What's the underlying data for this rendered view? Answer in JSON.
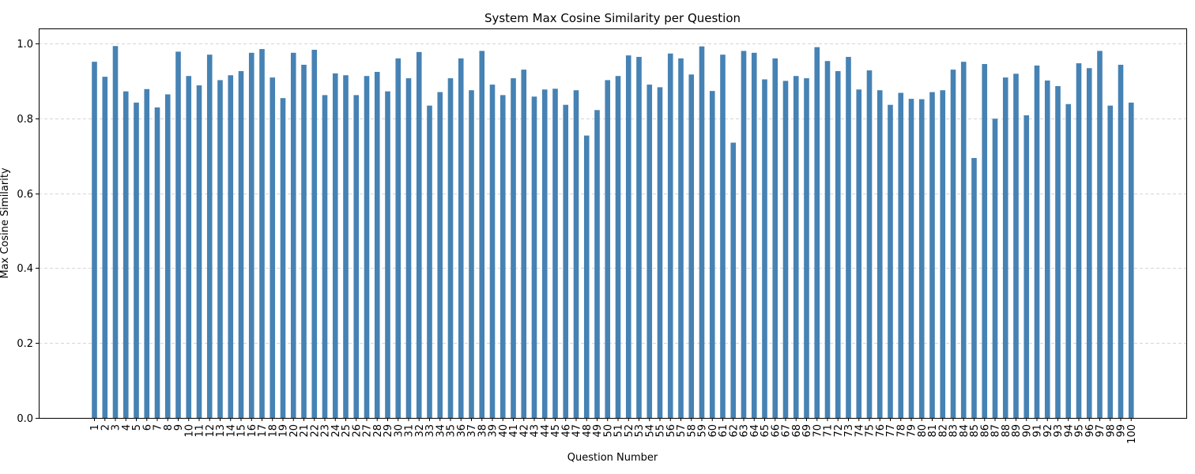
{
  "chart_data": {
    "type": "bar",
    "title": "System Max Cosine Similarity per Question",
    "xlabel": "Question Number",
    "ylabel": "Max Cosine Similarity",
    "ylim": [
      0,
      1.04
    ],
    "yticks": [
      0.0,
      0.2,
      0.4,
      0.6,
      0.8,
      1.0
    ],
    "ytick_labels": [
      "0.0",
      "0.2",
      "0.4",
      "0.6",
      "0.8",
      "1.0"
    ],
    "grid": "horizontal dashed",
    "bar_color": "#4682b4",
    "categories": [
      "1",
      "2",
      "3",
      "4",
      "5",
      "6",
      "7",
      "8",
      "9",
      "10",
      "11",
      "12",
      "13",
      "14",
      "15",
      "16",
      "17",
      "18",
      "19",
      "20",
      "21",
      "22",
      "23",
      "24",
      "25",
      "26",
      "27",
      "28",
      "29",
      "30",
      "31",
      "32",
      "33",
      "34",
      "35",
      "36",
      "37",
      "38",
      "39",
      "40",
      "41",
      "42",
      "43",
      "44",
      "45",
      "46",
      "47",
      "48",
      "49",
      "50",
      "51",
      "52",
      "53",
      "54",
      "55",
      "56",
      "57",
      "58",
      "59",
      "60",
      "61",
      "62",
      "63",
      "64",
      "65",
      "66",
      "67",
      "68",
      "69",
      "70",
      "71",
      "72",
      "73",
      "74",
      "75",
      "76",
      "77",
      "78",
      "79",
      "80",
      "81",
      "82",
      "83",
      "84",
      "85",
      "86",
      "87",
      "88",
      "89",
      "90",
      "91",
      "92",
      "93",
      "94",
      "95",
      "96",
      "97",
      "98",
      "99",
      "100"
    ],
    "values": [
      0.951,
      0.911,
      0.993,
      0.872,
      0.842,
      0.878,
      0.829,
      0.864,
      0.978,
      0.913,
      0.888,
      0.97,
      0.902,
      0.915,
      0.926,
      0.975,
      0.985,
      0.909,
      0.854,
      0.975,
      0.943,
      0.983,
      0.862,
      0.92,
      0.915,
      0.862,
      0.913,
      0.924,
      0.872,
      0.96,
      0.907,
      0.977,
      0.834,
      0.87,
      0.907,
      0.96,
      0.875,
      0.98,
      0.89,
      0.862,
      0.907,
      0.93,
      0.858,
      0.877,
      0.879,
      0.836,
      0.875,
      0.754,
      0.822,
      0.902,
      0.913,
      0.968,
      0.964,
      0.89,
      0.883,
      0.973,
      0.96,
      0.917,
      0.992,
      0.873,
      0.97,
      0.735,
      0.98,
      0.975,
      0.904,
      0.96,
      0.9,
      0.913,
      0.907,
      0.99,
      0.953,
      0.926,
      0.964,
      0.877,
      0.928,
      0.875,
      0.836,
      0.868,
      0.852,
      0.851,
      0.87,
      0.875,
      0.93,
      0.951,
      0.694,
      0.945,
      0.799,
      0.909,
      0.919,
      0.808,
      0.941,
      0.901,
      0.886,
      0.838,
      0.947,
      0.934,
      0.98,
      0.834,
      0.943,
      0.842
    ]
  }
}
